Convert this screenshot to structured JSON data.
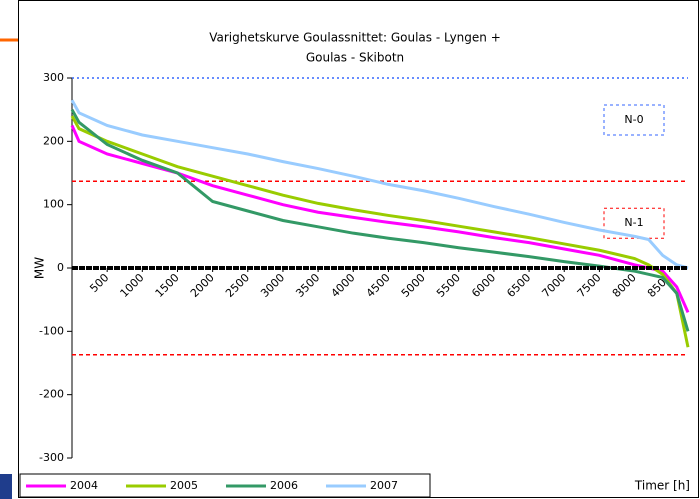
{
  "chart_data": {
    "type": "line",
    "title": [
      "Varighetskurve Goulassnittet: Goulas - Lyngen +",
      "Goulas - Skibotn"
    ],
    "y_label": "MW",
    "x_label": "Timer [h]",
    "x": [
      0,
      100,
      500,
      1000,
      1500,
      2000,
      2500,
      3000,
      3500,
      4000,
      4500,
      5000,
      5500,
      6000,
      6500,
      7000,
      7500,
      8000,
      8200,
      8400,
      8600,
      8760
    ],
    "series": [
      {
        "name": "2004",
        "color": "#ff00ff",
        "values": [
          225,
          200,
          180,
          165,
          150,
          130,
          115,
          100,
          88,
          80,
          72,
          65,
          57,
          48,
          40,
          30,
          20,
          5,
          0,
          -5,
          -30,
          -70
        ]
      },
      {
        "name": "2005",
        "color": "#99cc00",
        "values": [
          240,
          220,
          200,
          180,
          160,
          145,
          130,
          115,
          102,
          92,
          83,
          75,
          66,
          57,
          48,
          38,
          28,
          15,
          5,
          -10,
          -40,
          -125
        ]
      },
      {
        "name": "2006",
        "color": "#339966",
        "values": [
          250,
          230,
          195,
          170,
          150,
          105,
          90,
          75,
          65,
          55,
          47,
          40,
          32,
          25,
          18,
          10,
          3,
          -5,
          -10,
          -15,
          -40,
          -100
        ]
      },
      {
        "name": "2007",
        "color": "#99ccff",
        "values": [
          265,
          245,
          225,
          210,
          200,
          190,
          180,
          168,
          157,
          145,
          132,
          122,
          110,
          97,
          85,
          72,
          60,
          50,
          45,
          20,
          5,
          0
        ]
      }
    ],
    "limit_lines": [
      {
        "value": 300,
        "color": "#3366ff"
      },
      {
        "value": 137,
        "color": "#ff0000"
      },
      {
        "value": -137,
        "color": "#ff0000"
      }
    ],
    "annotations": [
      "N-0",
      "N-1"
    ],
    "xlim": [
      0,
      8760
    ],
    "xticks": [
      500,
      1000,
      1500,
      2000,
      2500,
      3000,
      3500,
      4000,
      4500,
      5000,
      5500,
      6000,
      6500,
      7000,
      7500,
      8000,
      8500
    ],
    "ylim": [
      -300,
      300
    ],
    "yticks": [
      -300,
      -200,
      -100,
      0,
      100,
      200,
      300
    ]
  }
}
